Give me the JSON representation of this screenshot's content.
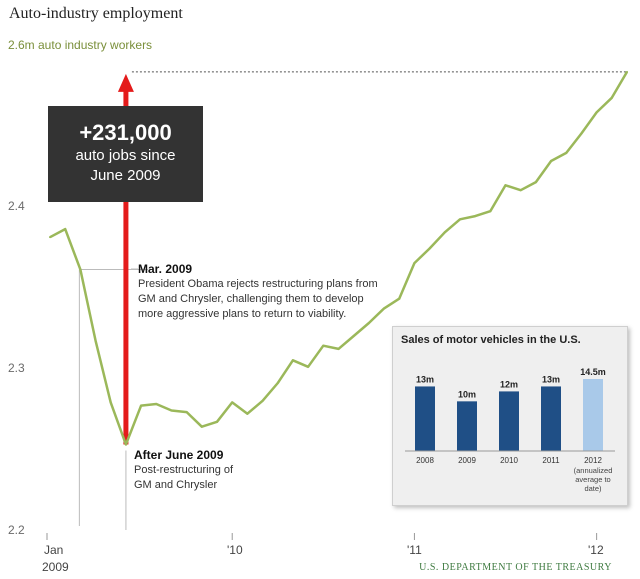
{
  "title": "Auto-industry employment",
  "y_axis": {
    "top_label": "2.6m auto industry workers",
    "ticks": [
      "2.4",
      "2.3",
      "2.2"
    ]
  },
  "x_axis": {
    "ticks": [
      "Jan",
      "'10",
      "'11",
      "'12"
    ],
    "first_year": "2009"
  },
  "callout": {
    "headline": "+231,000",
    "line1": "auto jobs since",
    "line2": "June 2009"
  },
  "annotations": {
    "march": {
      "title": "Mar. 2009",
      "text": "President Obama rejects restructuring plans from GM and Chrysler, challenging them to develop more aggressive plans to return to viability."
    },
    "june": {
      "title": "After June 2009",
      "text": "Post-restructuring of GM and Chrysler"
    }
  },
  "credit": "U.S. DEPARTMENT OF THE TREASURY",
  "colors": {
    "line": "#9bb85a",
    "arrow": "#e41b1b",
    "bar_dark": "#1f4f86",
    "bar_light": "#a9c9e9"
  },
  "chart_data": [
    {
      "type": "line",
      "title": "Auto-industry employment",
      "ylabel": "auto industry workers (m)",
      "ylim": [
        2.2,
        2.6
      ],
      "x": [
        "2009-01",
        "2009-02",
        "2009-03",
        "2009-04",
        "2009-05",
        "2009-06",
        "2009-07",
        "2009-08",
        "2009-09",
        "2009-10",
        "2009-11",
        "2009-12",
        "2010-01",
        "2010-02",
        "2010-03",
        "2010-04",
        "2010-05",
        "2010-06",
        "2010-07",
        "2010-08",
        "2010-09",
        "2010-10",
        "2010-11",
        "2010-12",
        "2011-01",
        "2011-02",
        "2011-03",
        "2011-04",
        "2011-05",
        "2011-06",
        "2011-07",
        "2011-08",
        "2011-09",
        "2011-10",
        "2011-11",
        "2011-12",
        "2012-01",
        "2012-02",
        "2012-03"
      ],
      "values": [
        2.382,
        2.387,
        2.362,
        2.318,
        2.28,
        2.254,
        2.278,
        2.279,
        2.275,
        2.274,
        2.265,
        2.268,
        2.28,
        2.273,
        2.281,
        2.292,
        2.306,
        2.302,
        2.315,
        2.313,
        2.321,
        2.329,
        2.338,
        2.344,
        2.366,
        2.375,
        2.385,
        2.393,
        2.395,
        2.398,
        2.414,
        2.411,
        2.416,
        2.429,
        2.434,
        2.446,
        2.459,
        2.468,
        2.484
      ],
      "annotation": {
        "start": "2009-06",
        "label": "+231,000 auto jobs since June 2009"
      }
    },
    {
      "type": "bar",
      "title": "Sales of motor vehicles in the U.S.",
      "categories": [
        "2008",
        "2009",
        "2010",
        "2011",
        "2012"
      ],
      "category_notes": [
        "",
        "",
        "",
        "",
        "(annualized average to date)"
      ],
      "values": [
        13,
        10,
        12,
        13,
        14.5
      ],
      "value_labels": [
        "13m",
        "10m",
        "12m",
        "13m",
        "14.5m"
      ],
      "highlight": [
        "dark",
        "dark",
        "dark",
        "dark",
        "light"
      ]
    }
  ]
}
